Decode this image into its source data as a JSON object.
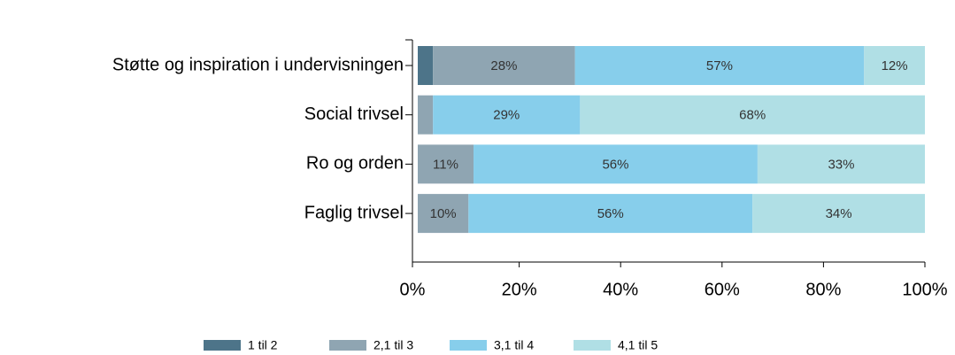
{
  "chart_data": {
    "type": "stacked_barh",
    "categories": [
      "Støtte og inspiration i undervisningen",
      "Social trivsel",
      "Ro og orden",
      "Faglig trivsel"
    ],
    "series": [
      {
        "name": "1 til 2",
        "color": "#4d7489",
        "values": [
          3,
          0,
          0,
          0
        ],
        "value_labels": [
          null,
          null,
          null,
          null
        ]
      },
      {
        "name": "2,1 til 3",
        "color": "#8fa5b2",
        "values": [
          28,
          3,
          11,
          10
        ],
        "value_labels": [
          "28%",
          null,
          "11%",
          "10%"
        ]
      },
      {
        "name": "3,1 til 4",
        "color": "#87ceeb",
        "values": [
          57,
          29,
          56,
          56
        ],
        "value_labels": [
          "57%",
          "29%",
          "56%",
          "56%"
        ]
      },
      {
        "name": "4,1 til 5",
        "color": "#b0dfe5",
        "values": [
          12,
          68,
          33,
          34
        ],
        "value_labels": [
          "12%",
          "68%",
          "33%",
          "34%"
        ]
      }
    ],
    "xlim": [
      0,
      100
    ],
    "xticks": [
      {
        "value": 0,
        "label": "0%"
      },
      {
        "value": 20,
        "label": "20%"
      },
      {
        "value": 40,
        "label": "40%"
      },
      {
        "value": 60,
        "label": "60%"
      },
      {
        "value": 80,
        "label": "80%"
      },
      {
        "value": 100,
        "label": "100%"
      }
    ],
    "legend": "bottom"
  }
}
